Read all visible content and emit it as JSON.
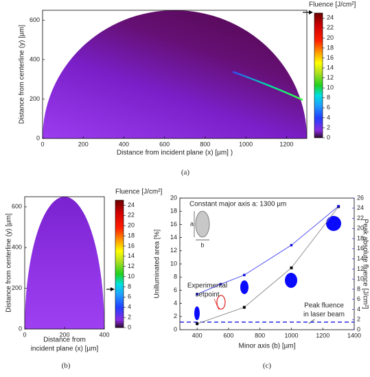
{
  "chart_data": [
    {
      "type": "heatmap",
      "caption": "(a)",
      "xlabel": "Distance from incident plane (x) [µm] )",
      "ylabel": "Distance from centerline (y) [µm]",
      "xlim": [
        0,
        1300
      ],
      "ylim": [
        0,
        650
      ],
      "xticks": [
        0,
        200,
        400,
        600,
        800,
        1000,
        1200
      ],
      "yticks": [
        0,
        200,
        400,
        600
      ],
      "colorbar": {
        "label": "Fluence [J/cm²]",
        "lim": [
          0,
          25
        ],
        "ticks": [
          0,
          2,
          4,
          6,
          8,
          10,
          12,
          14,
          16,
          18,
          20,
          22,
          24
        ]
      }
    },
    {
      "type": "heatmap",
      "caption": "(b)",
      "xlabel": [
        "Distance from",
        "incident plane (x) [µm]"
      ],
      "ylabel": "Distance from centerline (y) [µm]",
      "xlim": [
        0,
        400
      ],
      "ylim": [
        0,
        650
      ],
      "xticks": [
        0,
        200,
        400
      ],
      "yticks": [
        0,
        200,
        400,
        600
      ],
      "colorbar": {
        "label": "Fluence [J/cm²]",
        "lim": [
          0,
          25
        ],
        "ticks": [
          0,
          2,
          4,
          6,
          8,
          10,
          12,
          14,
          16,
          18,
          20,
          22,
          24
        ]
      }
    },
    {
      "type": "line",
      "caption": "(c)",
      "xlabel": "Minor axis (b) [µm]",
      "ylabel": "Unilluminated area [%]",
      "y2label": "Peak absolute fluence [J/cm²]",
      "xlim": [
        290,
        1400
      ],
      "xticks": [
        400,
        600,
        800,
        1000,
        1200,
        1400
      ],
      "ylim": [
        0,
        20
      ],
      "yticks": [
        0,
        2,
        4,
        6,
        8,
        10,
        12,
        14,
        16,
        18,
        20
      ],
      "y2lim": [
        0,
        26
      ],
      "y2ticks": [
        0,
        2,
        4,
        6,
        8,
        10,
        12,
        14,
        16,
        18,
        20,
        22,
        24,
        26
      ],
      "series": [
        {
          "color": "#000000",
          "line_color": "#888888",
          "x": [
            400,
            700,
            1000,
            1300
          ],
          "values": [
            0.9,
            3.4,
            9.4,
            18.7
          ]
        },
        {
          "color": "#1010e0",
          "line_color": "#3a3af0",
          "axis": "y2",
          "x": [
            400,
            550,
            700,
            1000,
            1300
          ],
          "values": [
            7.0,
            9.0,
            10.8,
            16.7,
            24.4
          ]
        }
      ],
      "hline": {
        "value": 1.5,
        "axis": "y2",
        "color": "#1010e0"
      },
      "annotations": {
        "major": "Constant major axis a: 1300 µm",
        "a": "a",
        "b": "b",
        "setpoint": [
          "Experimental",
          "setpoint"
        ],
        "peak": [
          "Peak fluence",
          "in laser beam"
        ]
      }
    }
  ]
}
